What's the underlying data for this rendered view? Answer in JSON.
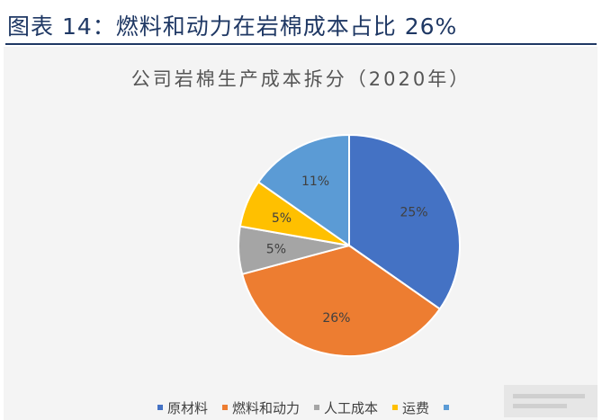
{
  "header": {
    "title": "图表 14：燃料和动力在岩棉成本占比 26%"
  },
  "chart_data": {
    "type": "pie",
    "title": "公司岩棉生产成本拆分（2020年）",
    "slices": [
      {
        "name": "原材料",
        "value": 25,
        "label": "25%",
        "color": "#4472c4"
      },
      {
        "name": "燃料和动力",
        "value": 26,
        "label": "26%",
        "color": "#ed7d31"
      },
      {
        "name": "人工成本",
        "value": 5,
        "label": "5%",
        "color": "#a5a5a5"
      },
      {
        "name": "运费",
        "value": 5,
        "label": "5%",
        "color": "#ffc000"
      },
      {
        "name": "",
        "value": 11,
        "label": "11%",
        "color": "#5b9bd5"
      }
    ],
    "legend": {
      "position": "bottom"
    }
  }
}
